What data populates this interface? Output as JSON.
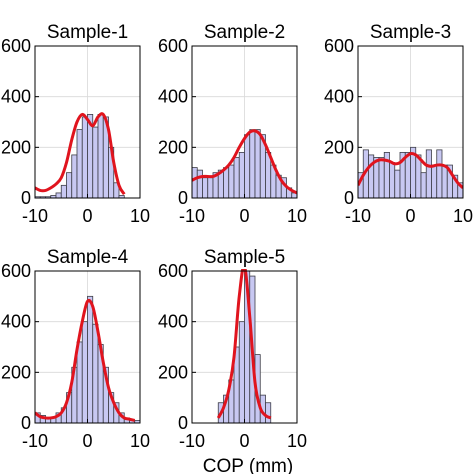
{
  "figure": {
    "xlabel": "COP (mm)"
  },
  "chart_data": [
    {
      "type": "bar",
      "title": "Sample-1",
      "bin_edges": [
        -10,
        -9,
        -8,
        -7,
        -6,
        -5,
        -4,
        -3,
        -2,
        -1,
        0,
        1,
        2,
        3,
        4,
        5,
        6,
        7,
        8,
        9,
        10
      ],
      "values": [
        5,
        5,
        5,
        10,
        20,
        50,
        100,
        170,
        270,
        320,
        330,
        280,
        330,
        320,
        200,
        60,
        10,
        0,
        0,
        0
      ],
      "fit_curve": {
        "x": [
          -10,
          -9,
          -8,
          -7,
          -6,
          -5,
          -4,
          -3,
          -2,
          -1,
          0,
          1,
          2,
          3,
          4,
          5,
          6,
          7
        ],
        "y": [
          40,
          30,
          30,
          40,
          55,
          80,
          140,
          230,
          300,
          330,
          310,
          285,
          320,
          330,
          270,
          140,
          50,
          15
        ]
      },
      "xlim": [
        -10,
        10
      ],
      "ylim": [
        0,
        600
      ],
      "xticks": [
        "-10",
        "0",
        "10"
      ],
      "yticks": [
        "0",
        "200",
        "400",
        "600"
      ]
    },
    {
      "type": "bar",
      "title": "Sample-2",
      "bin_edges": [
        -10,
        -9,
        -8,
        -7,
        -6,
        -5,
        -4,
        -3,
        -2,
        -1,
        0,
        1,
        2,
        3,
        4,
        5,
        6,
        7,
        8,
        9,
        10
      ],
      "values": [
        120,
        110,
        80,
        80,
        100,
        110,
        120,
        130,
        160,
        180,
        250,
        270,
        270,
        250,
        180,
        130,
        90,
        80,
        40,
        20
      ],
      "fit_curve": {
        "x": [
          -10,
          -9,
          -8,
          -7,
          -6,
          -5,
          -4,
          -3,
          -2,
          -1,
          0,
          1,
          2,
          3,
          4,
          5,
          6,
          7,
          8,
          9,
          10
        ],
        "y": [
          70,
          80,
          85,
          85,
          85,
          95,
          110,
          130,
          160,
          200,
          235,
          260,
          265,
          250,
          210,
          160,
          110,
          70,
          45,
          30,
          20
        ]
      },
      "xlim": [
        -10,
        10
      ],
      "ylim": [
        0,
        600
      ],
      "xticks": [
        "-10",
        "0",
        "10"
      ],
      "yticks": [
        "0",
        "200",
        "400",
        "600"
      ]
    },
    {
      "type": "bar",
      "title": "Sample-3",
      "bin_edges": [
        -10,
        -9,
        -8,
        -7,
        -6,
        -5,
        -4,
        -3,
        -2,
        -1,
        0,
        1,
        2,
        3,
        4,
        5,
        6,
        7,
        8,
        9,
        10
      ],
      "values": [
        100,
        190,
        170,
        160,
        160,
        180,
        140,
        110,
        180,
        180,
        200,
        170,
        100,
        190,
        130,
        190,
        130,
        130,
        90,
        60
      ],
      "fit_curve": {
        "x": [
          -10,
          -9,
          -8,
          -7,
          -6,
          -5,
          -4,
          -3,
          -2,
          -1,
          0,
          1,
          2,
          3,
          4,
          5,
          6,
          7,
          8,
          9,
          10
        ],
        "y": [
          50,
          90,
          120,
          140,
          150,
          150,
          145,
          135,
          140,
          160,
          175,
          170,
          150,
          130,
          125,
          130,
          130,
          120,
          90,
          60,
          40
        ]
      },
      "xlim": [
        -10,
        10
      ],
      "ylim": [
        0,
        600
      ],
      "xticks": [
        "-10",
        "0",
        "10"
      ],
      "yticks": [
        "0",
        "200",
        "400",
        "600"
      ]
    },
    {
      "type": "bar",
      "title": "Sample-4",
      "bin_edges": [
        -10,
        -9,
        -8,
        -7,
        -6,
        -5,
        -4,
        -3,
        -2,
        -1,
        0,
        1,
        2,
        3,
        4,
        5,
        6,
        7,
        8,
        9,
        10
      ],
      "values": [
        40,
        30,
        20,
        20,
        40,
        60,
        120,
        220,
        320,
        400,
        500,
        390,
        310,
        220,
        120,
        80,
        40,
        20,
        10,
        10
      ],
      "fit_curve": {
        "x": [
          -10,
          -9,
          -8,
          -7,
          -6,
          -5,
          -4,
          -3,
          -2,
          -1,
          0,
          1,
          2,
          3,
          4,
          5,
          6,
          7,
          8,
          9
        ],
        "y": [
          40,
          25,
          20,
          20,
          25,
          40,
          80,
          160,
          290,
          400,
          480,
          460,
          360,
          240,
          140,
          80,
          40,
          20,
          15,
          10
        ]
      },
      "xlim": [
        -10,
        10
      ],
      "ylim": [
        0,
        600
      ],
      "xticks": [
        "-10",
        "0",
        "10"
      ],
      "yticks": [
        "0",
        "200",
        "400",
        "600"
      ]
    },
    {
      "type": "bar",
      "title": "Sample-5",
      "bin_edges": [
        -5,
        -4,
        -3,
        -2,
        -1,
        0,
        1,
        2,
        3,
        4,
        5
      ],
      "values": [
        80,
        110,
        170,
        300,
        400,
        600,
        580,
        270,
        110,
        80
      ],
      "fit_curve": {
        "x": [
          -5,
          -4,
          -3,
          -2,
          -1,
          0,
          1,
          2,
          3,
          4,
          5
        ],
        "y": [
          20,
          60,
          130,
          260,
          500,
          620,
          420,
          160,
          60,
          30,
          20
        ]
      },
      "xlim": [
        -10,
        10
      ],
      "ylim": [
        0,
        600
      ],
      "xticks": [
        "-10",
        "0",
        "10"
      ],
      "yticks": [
        "0",
        "200",
        "400",
        "600"
      ]
    }
  ],
  "colors": {
    "bar_fill": "#c8c8f2",
    "bar_stroke": "#3c3c46",
    "fit_curve": "#e0141e",
    "grid": "#d9d9d9"
  }
}
